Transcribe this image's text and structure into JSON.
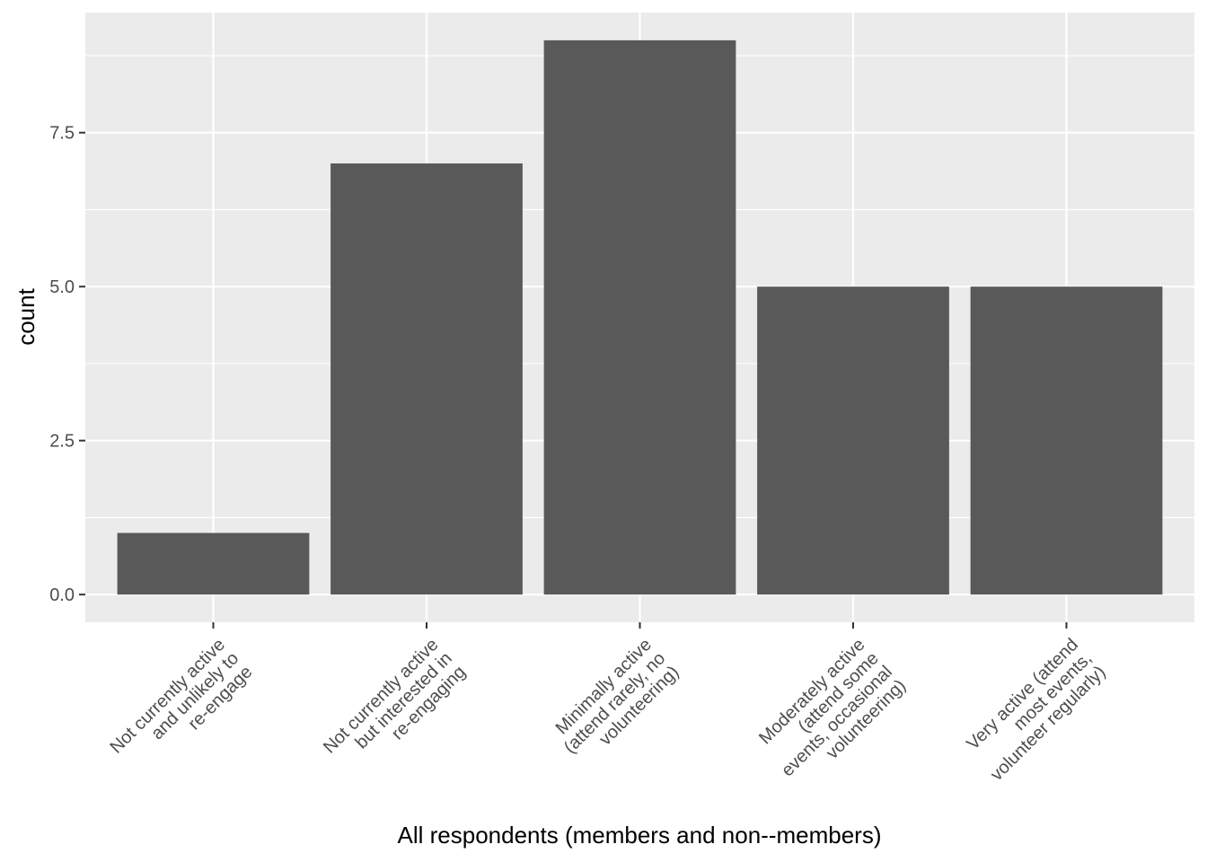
{
  "chart_data": {
    "type": "bar",
    "title": "",
    "xlabel": "All respondents (members and non--members)",
    "ylabel": "count",
    "categories": [
      [
        "Not currently active",
        "and unlikely to",
        "re-engage"
      ],
      [
        "Not currently active",
        "but interested in",
        "re-engaging"
      ],
      [
        "Minimally active",
        "(attend rarely, no",
        "volunteering)"
      ],
      [
        "Moderately active",
        "(attend some",
        "events, occasional",
        "volunteering)"
      ],
      [
        "Very active (attend",
        "most events,",
        "volunteer regularly)"
      ]
    ],
    "values": [
      1,
      7,
      9,
      5,
      5
    ],
    "ylim": [
      -0.45,
      9.45
    ],
    "yticks": [
      0,
      2.5,
      5,
      7.5
    ],
    "ytick_labels": [
      "0.0",
      "2.5",
      "5.0",
      "7.5"
    ],
    "grid": true,
    "colors": {
      "panel": "#ebebeb",
      "grid": "#ffffff",
      "bar": "#595959",
      "tick": "#333333"
    }
  }
}
